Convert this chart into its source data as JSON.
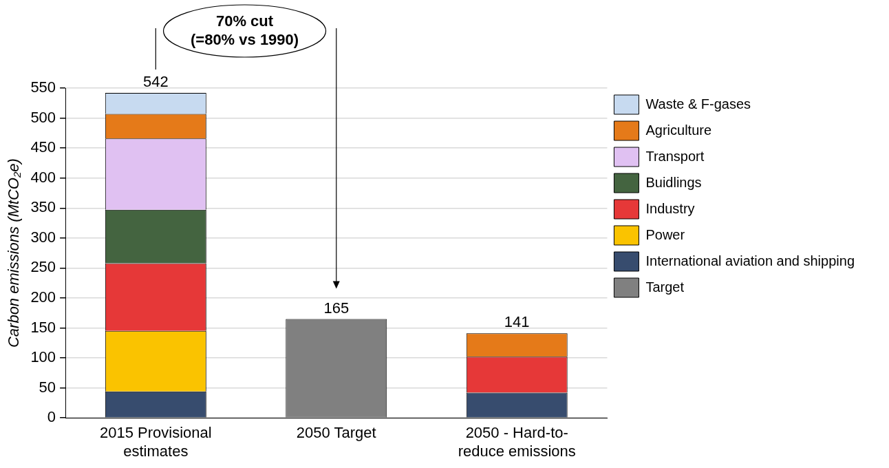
{
  "chart_data": {
    "type": "bar",
    "stacked": true,
    "ylabel": "Carbon emissions (MtCO₂e)",
    "categories": [
      "2015 Provisional estimates",
      "2050 Target",
      "2050 - Hard-to-reduce emissions"
    ],
    "series": [
      {
        "name": "International aviation and shipping",
        "color": "#374c6e",
        "values": [
          44,
          null,
          42
        ]
      },
      {
        "name": "Power",
        "color": "#fac300",
        "values": [
          101,
          null,
          null
        ]
      },
      {
        "name": "Industry",
        "color": "#e63838",
        "values": [
          113,
          null,
          60
        ]
      },
      {
        "name": "Buidlings",
        "color": "#446440",
        "values": [
          89,
          null,
          null
        ]
      },
      {
        "name": "Transport",
        "color": "#e0c1f2",
        "values": [
          119,
          null,
          null
        ]
      },
      {
        "name": "Agriculture",
        "color": "#e57a19",
        "values": [
          41,
          null,
          39
        ]
      },
      {
        "name": "Waste & F-gases",
        "color": "#c7daf0",
        "values": [
          35,
          null,
          null
        ]
      },
      {
        "name": "Target",
        "color": "#808080",
        "values": [
          null,
          165,
          null
        ]
      }
    ],
    "totals": [
      "542",
      "165",
      "141"
    ],
    "ylim": [
      0,
      550
    ],
    "yticks": [
      0,
      50,
      100,
      150,
      200,
      250,
      300,
      350,
      400,
      450,
      500,
      550
    ],
    "grid": "y",
    "legend": "right",
    "annotations": [
      "70% cut",
      "(=80% vs 1990)"
    ]
  }
}
